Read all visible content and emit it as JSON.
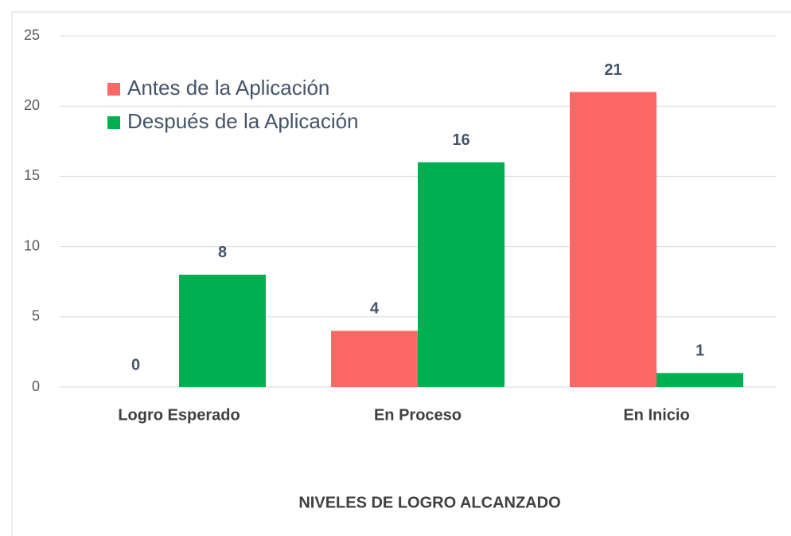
{
  "chart_data": {
    "type": "bar",
    "x_label": "NIVELES DE LOGRO ALCANZADO",
    "categories": [
      "Logro Esperado",
      "En Proceso",
      "En Inicio"
    ],
    "series": [
      {
        "name": "Antes de la Aplicación",
        "color": "#ff6666",
        "values": [
          0,
          4,
          21
        ]
      },
      {
        "name": "Después de la Aplicación",
        "color": "#00b050",
        "values": [
          8,
          16,
          1
        ]
      }
    ],
    "ylim": [
      0,
      25
    ],
    "yticks": [
      0,
      5,
      10,
      15,
      20,
      25
    ],
    "grid": true,
    "legend": "upper left"
  }
}
